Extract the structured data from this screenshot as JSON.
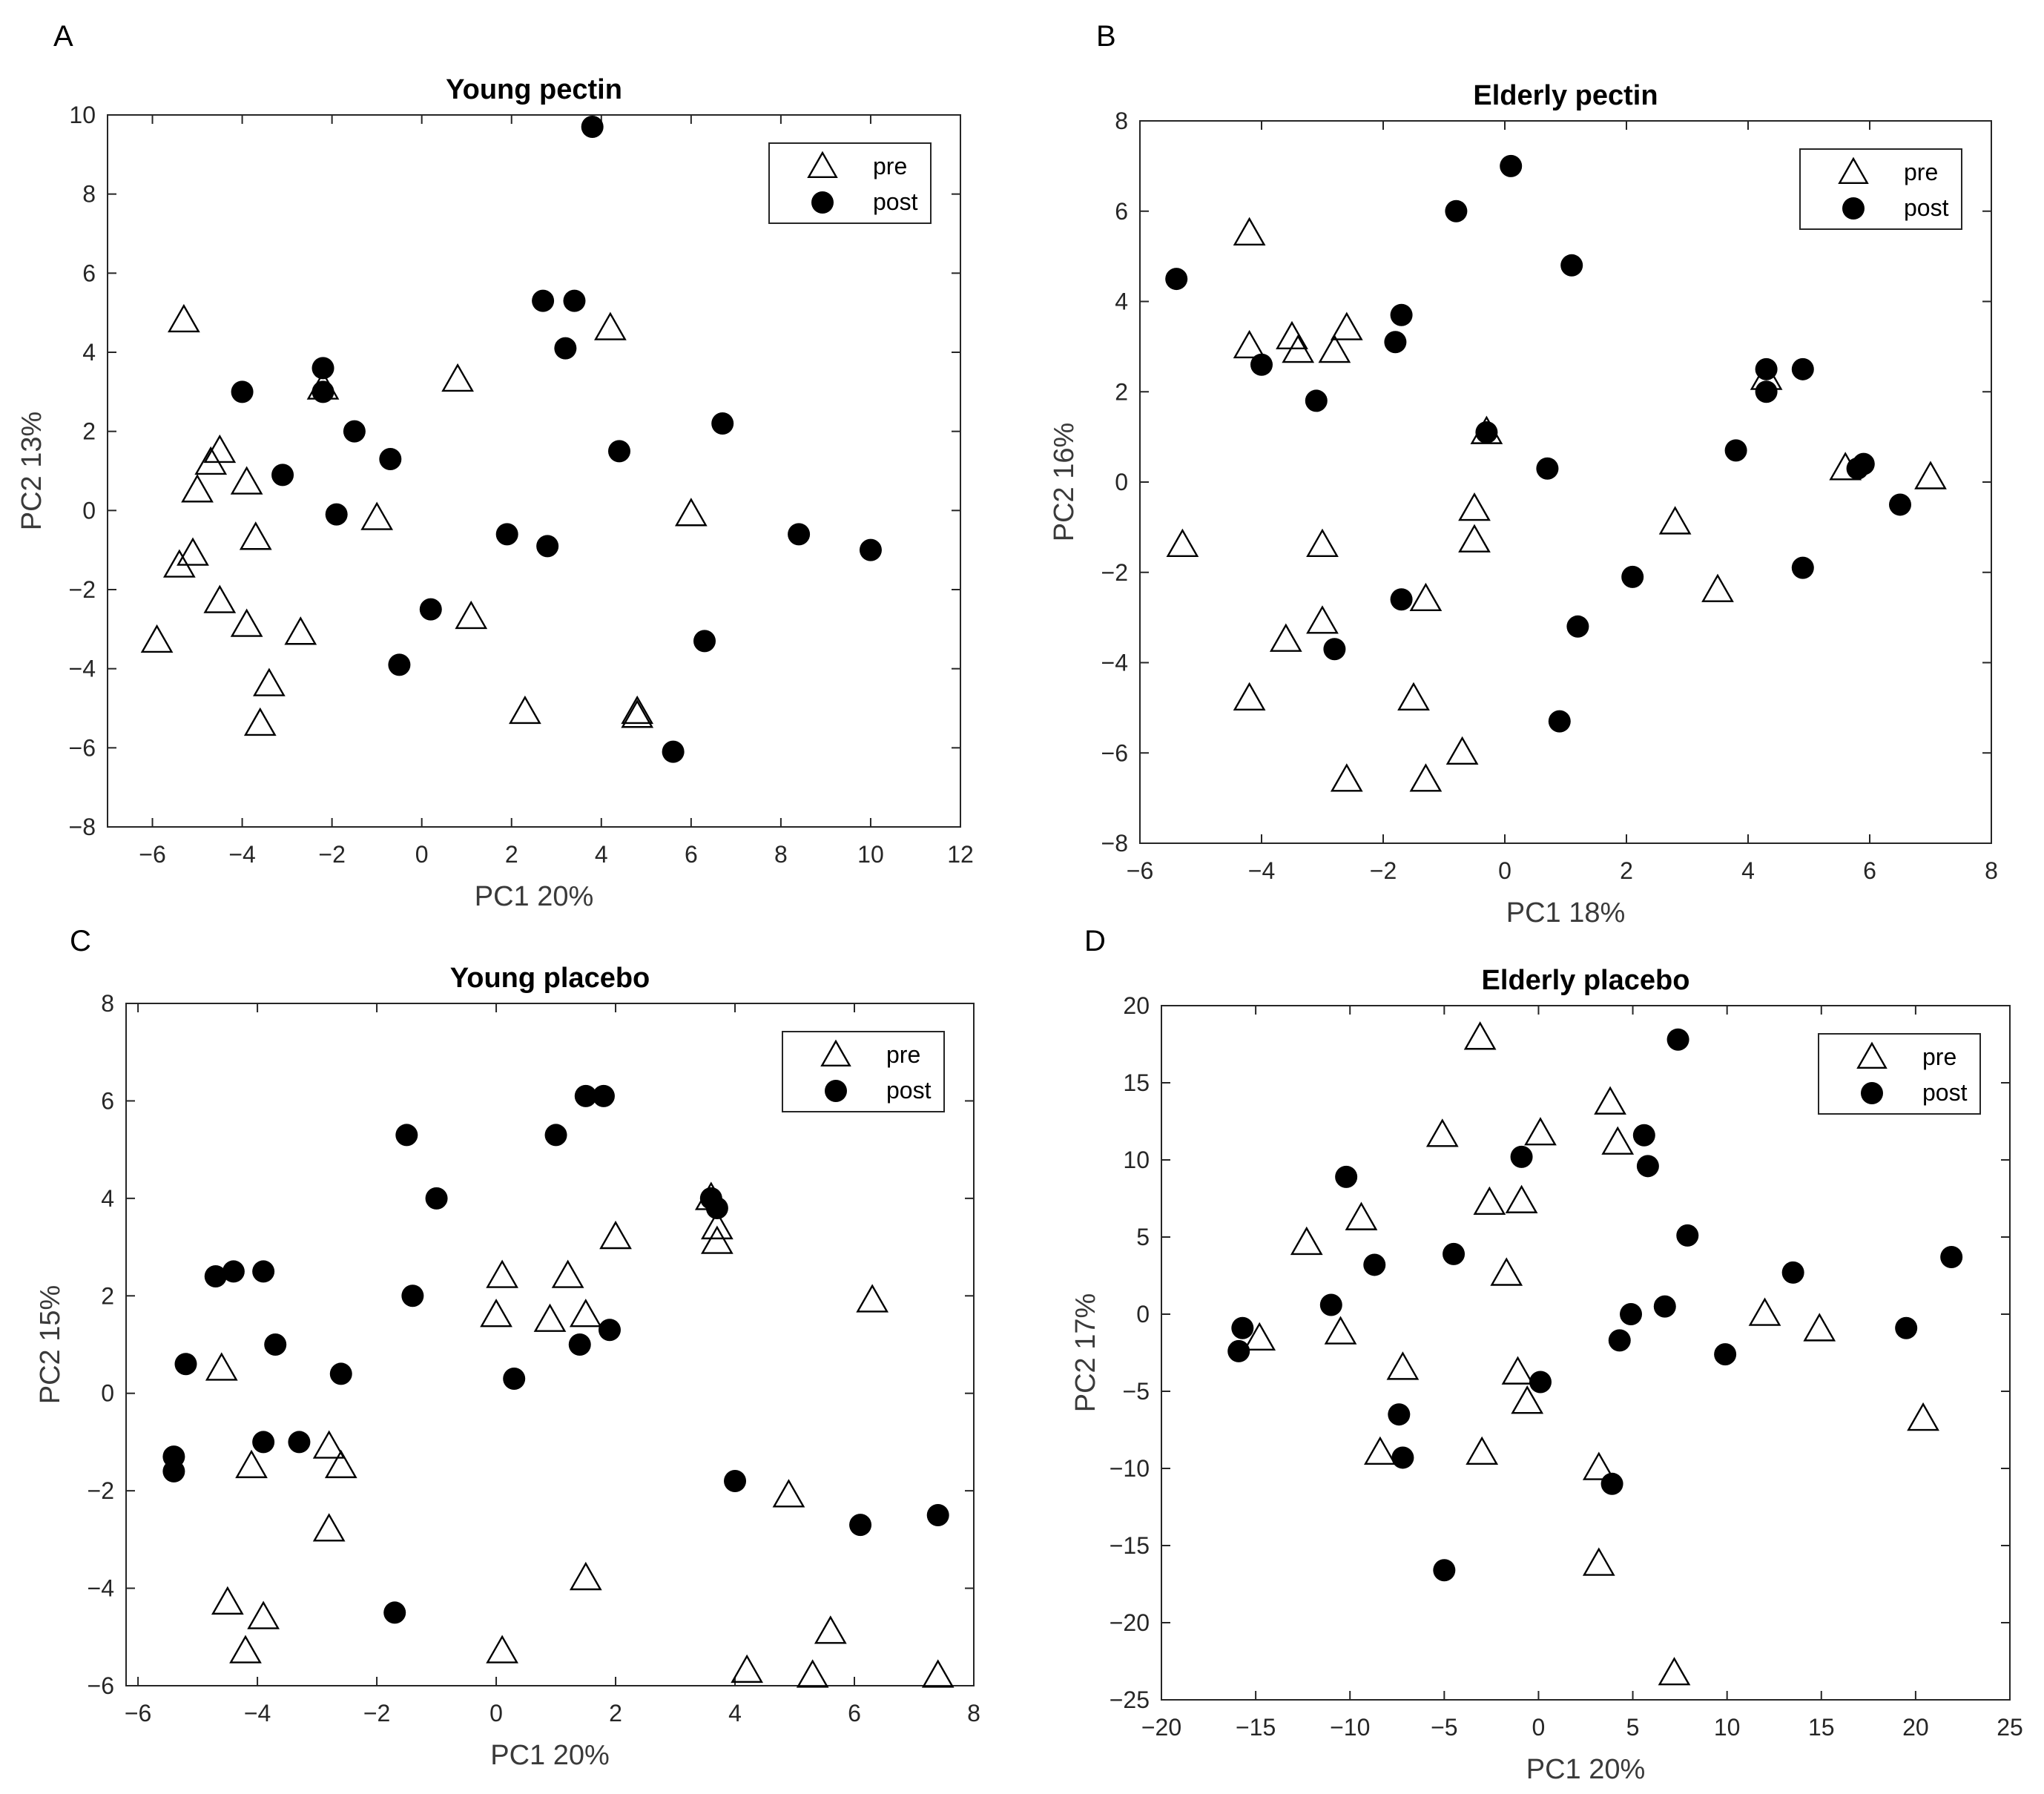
{
  "figure": {
    "panel_letters": [
      "A",
      "B",
      "C",
      "D"
    ]
  },
  "chart_data": [
    {
      "type": "scatter",
      "panel": "A",
      "title": "Young pectin",
      "xlabel": "PC1 20%",
      "ylabel": "PC2 13%",
      "xlim": [
        -7,
        12
      ],
      "ylim": [
        -8,
        10
      ],
      "xticks": [
        -6,
        -4,
        -2,
        0,
        2,
        4,
        6,
        8,
        10,
        12
      ],
      "yticks": [
        -8,
        -6,
        -4,
        -2,
        0,
        2,
        4,
        6,
        8,
        10
      ],
      "legend": {
        "position": "top-right",
        "entries": [
          "pre",
          "post"
        ]
      },
      "series": [
        {
          "name": "pre",
          "marker": "triangle",
          "points": [
            [
              -5.9,
              -3.3
            ],
            [
              -5.4,
              -1.4
            ],
            [
              -5.1,
              -1.1
            ],
            [
              -5.0,
              0.5
            ],
            [
              -4.7,
              1.2
            ],
            [
              -4.5,
              1.5
            ],
            [
              -4.5,
              -2.3
            ],
            [
              -3.9,
              0.7
            ],
            [
              -3.9,
              -2.9
            ],
            [
              -3.7,
              -0.7
            ],
            [
              -3.4,
              -4.4
            ],
            [
              -3.6,
              -5.4
            ],
            [
              -2.7,
              -3.1
            ],
            [
              -2.2,
              3.1
            ],
            [
              -1.0,
              -0.2
            ],
            [
              0.8,
              3.3
            ],
            [
              1.1,
              -2.7
            ],
            [
              2.3,
              -5.1
            ],
            [
              4.2,
              4.6
            ],
            [
              4.8,
              -5.1
            ],
            [
              4.8,
              -5.2
            ],
            [
              6.0,
              -0.1
            ],
            [
              -5.3,
              4.8
            ]
          ]
        },
        {
          "name": "post",
          "marker": "circle",
          "points": [
            [
              -4.0,
              3.0
            ],
            [
              -3.1,
              0.9
            ],
            [
              -2.2,
              3.6
            ],
            [
              -2.2,
              3.0
            ],
            [
              -1.5,
              2.0
            ],
            [
              -1.9,
              -0.1
            ],
            [
              -0.7,
              1.3
            ],
            [
              -0.5,
              -3.9
            ],
            [
              0.2,
              -2.5
            ],
            [
              1.9,
              -0.6
            ],
            [
              2.8,
              -0.9
            ],
            [
              2.7,
              5.3
            ],
            [
              3.4,
              5.3
            ],
            [
              3.2,
              4.1
            ],
            [
              3.8,
              9.7
            ],
            [
              4.4,
              1.5
            ],
            [
              5.6,
              -6.1
            ],
            [
              6.3,
              -3.3
            ],
            [
              6.7,
              2.2
            ],
            [
              8.4,
              -0.6
            ],
            [
              10.0,
              -1.0
            ]
          ]
        }
      ]
    },
    {
      "type": "scatter",
      "panel": "B",
      "title": "Elderly pectin",
      "xlabel": "PC1 18%",
      "ylabel": "PC2 16%",
      "xlim": [
        -6,
        8
      ],
      "ylim": [
        -8,
        8
      ],
      "xticks": [
        -6,
        -4,
        -2,
        0,
        2,
        4,
        6,
        8
      ],
      "yticks": [
        -8,
        -6,
        -4,
        -2,
        0,
        2,
        4,
        6,
        8
      ],
      "legend": {
        "position": "top-right",
        "entries": [
          "pre",
          "post"
        ]
      },
      "series": [
        {
          "name": "pre",
          "marker": "triangle",
          "points": [
            [
              -4.2,
              5.5
            ],
            [
              -4.2,
              3.0
            ],
            [
              -3.5,
              3.2
            ],
            [
              -3.4,
              2.9
            ],
            [
              -2.8,
              2.9
            ],
            [
              -2.6,
              3.4
            ],
            [
              -5.3,
              -1.4
            ],
            [
              -3.0,
              -1.4
            ],
            [
              -3.0,
              -3.1
            ],
            [
              -3.6,
              -3.5
            ],
            [
              -4.2,
              -4.8
            ],
            [
              -2.6,
              -6.6
            ],
            [
              -1.5,
              -4.8
            ],
            [
              -1.3,
              -2.6
            ],
            [
              -1.3,
              -6.6
            ],
            [
              -0.7,
              -6.0
            ],
            [
              -0.5,
              -0.6
            ],
            [
              -0.5,
              -1.3
            ],
            [
              -0.3,
              1.1
            ],
            [
              2.8,
              -0.9
            ],
            [
              3.5,
              -2.4
            ],
            [
              4.3,
              2.3
            ],
            [
              5.6,
              0.3
            ],
            [
              7.0,
              0.1
            ]
          ]
        },
        {
          "name": "post",
          "marker": "circle",
          "points": [
            [
              -5.4,
              4.5
            ],
            [
              -4.0,
              2.6
            ],
            [
              -3.1,
              1.8
            ],
            [
              -1.8,
              3.1
            ],
            [
              -1.7,
              3.7
            ],
            [
              -1.7,
              -2.6
            ],
            [
              -2.8,
              -3.7
            ],
            [
              -0.8,
              6.0
            ],
            [
              0.1,
              7.0
            ],
            [
              1.1,
              4.8
            ],
            [
              -0.3,
              1.1
            ],
            [
              0.7,
              0.3
            ],
            [
              2.1,
              -2.1
            ],
            [
              1.2,
              -3.2
            ],
            [
              0.9,
              -5.3
            ],
            [
              3.8,
              0.7
            ],
            [
              4.3,
              2.5
            ],
            [
              4.3,
              2.0
            ],
            [
              4.9,
              2.5
            ],
            [
              4.9,
              -1.9
            ],
            [
              5.8,
              0.3
            ],
            [
              5.9,
              0.4
            ],
            [
              6.5,
              -0.5
            ]
          ]
        }
      ]
    },
    {
      "type": "scatter",
      "panel": "C",
      "title": "Young placebo",
      "xlabel": "PC1 20%",
      "ylabel": "PC2 15%",
      "xlim": [
        -6.2,
        8
      ],
      "ylim": [
        -6,
        8
      ],
      "xticks": [
        -6,
        -4,
        -2,
        0,
        2,
        4,
        6,
        8
      ],
      "yticks": [
        -6,
        -4,
        -2,
        0,
        2,
        4,
        6,
        8
      ],
      "legend": {
        "position": "top-right",
        "entries": [
          "pre",
          "post"
        ]
      },
      "series": [
        {
          "name": "pre",
          "marker": "triangle",
          "points": [
            [
              -4.6,
              0.5
            ],
            [
              -4.1,
              -1.5
            ],
            [
              -2.8,
              -1.1
            ],
            [
              -2.6,
              -1.5
            ],
            [
              -2.8,
              -2.8
            ],
            [
              -4.5,
              -4.3
            ],
            [
              -3.9,
              -4.6
            ],
            [
              -4.2,
              -5.3
            ],
            [
              0.0,
              1.6
            ],
            [
              0.1,
              2.4
            ],
            [
              0.9,
              1.5
            ],
            [
              1.2,
              2.4
            ],
            [
              1.5,
              1.6
            ],
            [
              2.0,
              3.2
            ],
            [
              1.5,
              -3.8
            ],
            [
              0.1,
              -5.3
            ],
            [
              3.6,
              4.0
            ],
            [
              3.7,
              3.4
            ],
            [
              3.7,
              3.1
            ],
            [
              4.9,
              -2.1
            ],
            [
              4.2,
              -5.7
            ],
            [
              5.3,
              -5.8
            ],
            [
              5.6,
              -4.9
            ],
            [
              6.3,
              1.9
            ],
            [
              7.4,
              -5.8
            ]
          ]
        },
        {
          "name": "post",
          "marker": "circle",
          "points": [
            [
              -5.4,
              -1.3
            ],
            [
              -5.4,
              -1.6
            ],
            [
              -5.2,
              0.6
            ],
            [
              -4.7,
              2.4
            ],
            [
              -4.4,
              2.5
            ],
            [
              -3.9,
              2.5
            ],
            [
              -3.7,
              1.0
            ],
            [
              -3.9,
              -1.0
            ],
            [
              -3.3,
              -1.0
            ],
            [
              -2.6,
              0.4
            ],
            [
              -1.5,
              5.3
            ],
            [
              -1.4,
              2.0
            ],
            [
              -1.0,
              4.0
            ],
            [
              -1.7,
              -4.5
            ],
            [
              0.3,
              0.3
            ],
            [
              1.0,
              5.3
            ],
            [
              1.5,
              6.1
            ],
            [
              1.8,
              6.1
            ],
            [
              1.4,
              1.0
            ],
            [
              1.9,
              1.3
            ],
            [
              3.6,
              4.0
            ],
            [
              3.7,
              3.8
            ],
            [
              4.0,
              -1.8
            ],
            [
              6.1,
              -2.7
            ],
            [
              7.4,
              -2.5
            ]
          ]
        }
      ]
    },
    {
      "type": "scatter",
      "panel": "D",
      "title": "Elderly placebo",
      "xlabel": "PC1 20%",
      "ylabel": "PC2 17%",
      "xlim": [
        -20,
        25
      ],
      "ylim": [
        -25,
        20
      ],
      "xticks": [
        -20,
        -15,
        -10,
        -5,
        0,
        5,
        10,
        15,
        20,
        25
      ],
      "yticks": [
        -25,
        -20,
        -15,
        -10,
        -5,
        0,
        5,
        10,
        15,
        20
      ],
      "legend": {
        "position": "top-right",
        "entries": [
          "pre",
          "post"
        ]
      },
      "series": [
        {
          "name": "pre",
          "marker": "triangle",
          "points": [
            [
              -14.8,
              -1.6
            ],
            [
              -12.3,
              4.6
            ],
            [
              -10.5,
              -1.2
            ],
            [
              -9.4,
              6.2
            ],
            [
              -7.2,
              -3.5
            ],
            [
              -8.4,
              -9.0
            ],
            [
              -5.1,
              11.6
            ],
            [
              -3.1,
              17.9
            ],
            [
              -2.6,
              7.2
            ],
            [
              -3.0,
              -9.0
            ],
            [
              -1.7,
              2.6
            ],
            [
              -0.9,
              7.3
            ],
            [
              0.1,
              11.7
            ],
            [
              -1.1,
              -3.8
            ],
            [
              -0.6,
              -5.7
            ],
            [
              3.8,
              13.7
            ],
            [
              4.2,
              11.1
            ],
            [
              3.2,
              -10.0
            ],
            [
              3.2,
              -16.2
            ],
            [
              7.2,
              -23.3
            ],
            [
              12.0,
              0.0
            ],
            [
              14.9,
              -1.0
            ],
            [
              20.4,
              -6.8
            ]
          ]
        },
        {
          "name": "post",
          "marker": "circle",
          "points": [
            [
              -15.9,
              -2.4
            ],
            [
              -15.7,
              -0.9
            ],
            [
              -11.0,
              0.6
            ],
            [
              -10.2,
              8.9
            ],
            [
              -8.7,
              3.2
            ],
            [
              -7.4,
              -6.5
            ],
            [
              -7.2,
              -9.3
            ],
            [
              -5.0,
              -16.6
            ],
            [
              -4.5,
              3.9
            ],
            [
              -0.9,
              10.2
            ],
            [
              0.1,
              -4.4
            ],
            [
              4.3,
              -1.7
            ],
            [
              4.9,
              0.0
            ],
            [
              5.6,
              11.6
            ],
            [
              5.8,
              9.6
            ],
            [
              6.7,
              0.5
            ],
            [
              7.4,
              17.8
            ],
            [
              7.9,
              5.1
            ],
            [
              3.9,
              -11.0
            ],
            [
              9.9,
              -2.6
            ],
            [
              13.5,
              2.7
            ],
            [
              19.5,
              -0.9
            ],
            [
              21.9,
              3.7
            ]
          ]
        }
      ]
    }
  ]
}
